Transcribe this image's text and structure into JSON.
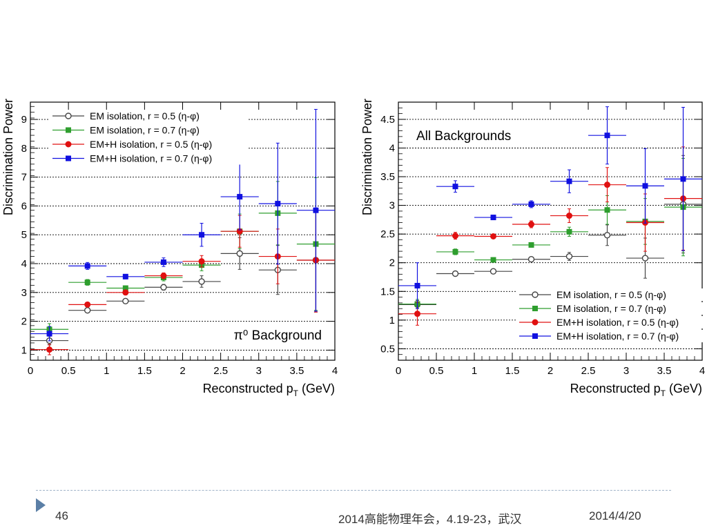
{
  "chart_data": [
    {
      "type": "scatter",
      "title": "π⁰ Background",
      "xlabel": "Reconstructed p_T (GeV)",
      "ylabel": "Discrimination Power",
      "xlim": [
        0,
        4
      ],
      "ylim": [
        0.65,
        9.6
      ],
      "xticks": [
        "0",
        "0.5",
        "1",
        "1.5",
        "2",
        "2.5",
        "3",
        "3.5",
        "4"
      ],
      "yticks": [
        "1",
        "2",
        "3",
        "4",
        "5",
        "6",
        "7",
        "8",
        "9"
      ],
      "legend_position": "top-left",
      "grid": "horizontal dotted",
      "series": [
        {
          "name": "EM isolation, r = 0.5 (η-φ)",
          "marker": "open-circle",
          "color": "#444444",
          "x": [
            0.25,
            0.75,
            1.25,
            1.75,
            2.25,
            2.75,
            3.25,
            3.75
          ],
          "y": [
            1.33,
            2.38,
            2.7,
            3.18,
            3.38,
            4.35,
            3.78,
            4.12
          ],
          "yerr": [
            0.15,
            0.08,
            0.07,
            0.1,
            0.2,
            0.55,
            0.85,
            1.8
          ]
        },
        {
          "name": "EM isolation, r = 0.7 (η-φ)",
          "marker": "square",
          "color": "#2e9e2e",
          "x": [
            0.25,
            0.75,
            1.25,
            1.75,
            2.25,
            2.75,
            3.25,
            3.75
          ],
          "y": [
            1.72,
            3.35,
            3.15,
            3.52,
            3.95,
            5.12,
            5.75,
            4.68
          ],
          "yerr": [
            0.2,
            0.1,
            0.08,
            0.12,
            0.2,
            0.6,
            1.1,
            2.3
          ]
        },
        {
          "name": "EM+H isolation, r = 0.5 (η-φ)",
          "marker": "circle",
          "color": "#e01010",
          "x": [
            0.25,
            0.75,
            1.25,
            1.75,
            2.25,
            2.75,
            3.25,
            3.75
          ],
          "y": [
            1.02,
            2.58,
            3.0,
            3.58,
            4.08,
            5.12,
            4.25,
            4.12
          ],
          "yerr": [
            0.18,
            0.08,
            0.08,
            0.1,
            0.2,
            0.55,
            0.95,
            1.8
          ]
        },
        {
          "name": "EM+H isolation, r = 0.7 (η-φ)",
          "marker": "square",
          "color": "#1010e0",
          "x": [
            0.25,
            0.75,
            1.25,
            1.75,
            2.25,
            2.75,
            3.25,
            3.75
          ],
          "y": [
            1.57,
            3.92,
            3.55,
            4.05,
            5.0,
            6.32,
            6.08,
            5.85
          ],
          "yerr": [
            0.25,
            0.12,
            0.08,
            0.15,
            0.4,
            1.15,
            2.1,
            3.5
          ]
        }
      ]
    },
    {
      "type": "scatter",
      "title": "All Backgrounds",
      "xlabel": "Reconstructed p_T (GeV)",
      "ylabel": "Discrimination Power",
      "xlim": [
        0,
        4
      ],
      "ylim": [
        0.3,
        4.8
      ],
      "xticks": [
        "0",
        "0.5",
        "1",
        "1.5",
        "2",
        "2.5",
        "3",
        "3.5",
        "4"
      ],
      "yticks": [
        "0.5",
        "1",
        "1.5",
        "2",
        "2.5",
        "3",
        "3.5",
        "4",
        "4.5"
      ],
      "legend_position": "bottom-right",
      "grid": "horizontal dotted",
      "series": [
        {
          "name": "EM isolation, r = 0.5 (η-φ)",
          "marker": "open-circle",
          "color": "#444444",
          "x": [
            0.25,
            0.75,
            1.25,
            1.75,
            2.25,
            2.75,
            3.25,
            3.75
          ],
          "y": [
            1.27,
            1.81,
            1.85,
            2.06,
            2.11,
            2.48,
            2.08,
            3.02
          ],
          "yerr": [
            0.07,
            0.04,
            0.03,
            0.04,
            0.07,
            0.18,
            0.35,
            0.85
          ]
        },
        {
          "name": "EM isolation, r = 0.7 (η-φ)",
          "marker": "square",
          "color": "#2e9e2e",
          "x": [
            0.25,
            0.75,
            1.25,
            1.75,
            2.25,
            2.75,
            3.25,
            3.75
          ],
          "y": [
            1.28,
            2.19,
            2.05,
            2.31,
            2.54,
            2.92,
            2.72,
            2.97
          ],
          "yerr": [
            0.08,
            0.05,
            0.03,
            0.04,
            0.08,
            0.25,
            0.4,
            0.85
          ]
        },
        {
          "name": "EM+H isolation, r = 0.5 (η-φ)",
          "marker": "circle",
          "color": "#e01010",
          "x": [
            0.25,
            0.75,
            1.25,
            1.75,
            2.25,
            2.75,
            3.25,
            3.75
          ],
          "y": [
            1.11,
            2.47,
            2.46,
            2.67,
            2.82,
            3.36,
            2.7,
            3.12
          ],
          "yerr": [
            0.2,
            0.06,
            0.03,
            0.06,
            0.12,
            0.3,
            0.5,
            0.9
          ]
        },
        {
          "name": "EM+H isolation, r = 0.7 (η-φ)",
          "marker": "square",
          "color": "#1010e0",
          "x": [
            0.25,
            0.75,
            1.25,
            1.75,
            2.25,
            2.75,
            3.25,
            3.75
          ],
          "y": [
            1.6,
            3.33,
            2.79,
            3.02,
            3.42,
            4.22,
            3.34,
            3.46
          ],
          "yerr": [
            0.4,
            0.1,
            0.03,
            0.06,
            0.2,
            0.5,
            0.65,
            1.25
          ]
        }
      ]
    }
  ],
  "footer": {
    "page_number": "46",
    "event": "2014高能物理年会，4.19-23，武汉",
    "date": "2014/4/20"
  }
}
